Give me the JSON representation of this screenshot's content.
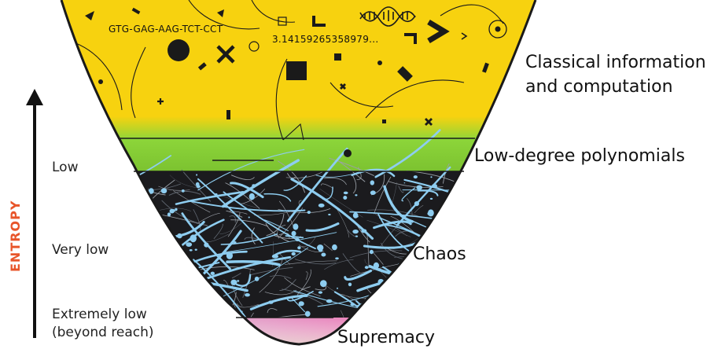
{
  "colors": {
    "classical": "#f7d20f",
    "polynomial_top": "#8dd63a",
    "polynomial_bottom": "#7cc230",
    "chaos_bg": "#1b1b1e",
    "chaos_splatter": "#8ecdf0",
    "supremacy": [
      "#f45ca9",
      "#e39ec8",
      "#c7b8d9",
      "#c8e5a8"
    ],
    "entropy_axis_label": "#e8552a",
    "outline": "#1a1a1a"
  },
  "entropy_axis": {
    "title": "ENTROPY",
    "levels": [
      {
        "id": "low",
        "lines": [
          "Low"
        ]
      },
      {
        "id": "very-low",
        "lines": [
          "Very low"
        ]
      },
      {
        "id": "extremely-low",
        "lines": [
          "Extremely low",
          "(beyond reach)"
        ]
      }
    ]
  },
  "regions": [
    {
      "id": "classical",
      "lines": [
        "Classical information",
        "and computation"
      ]
    },
    {
      "id": "polynomials",
      "lines": [
        "Low-degree polynomials"
      ]
    },
    {
      "id": "chaos",
      "lines": [
        "Chaos"
      ]
    },
    {
      "id": "supremacy",
      "lines": [
        "Supremacy"
      ]
    }
  ],
  "classical_texts": {
    "dna_sequence": "GTG-GAG-AAG-TCT-CCT",
    "pi_digits": "3.14159265358979..."
  },
  "icons": [
    "arrow-up-icon",
    "dna-helix-icon",
    "chevron-right-icon",
    "circle-target-icon",
    "cross-icon",
    "dot-icon",
    "square-icon",
    "triangle-icon"
  ]
}
